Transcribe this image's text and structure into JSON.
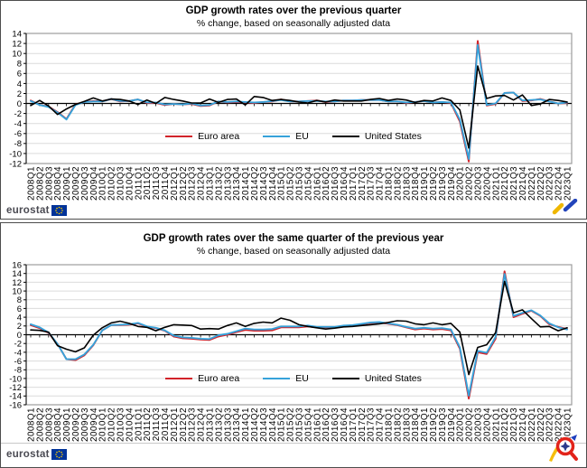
{
  "colors": {
    "grid": "#DCDCDC",
    "axis": "#000000",
    "frame": "#9C9C9C",
    "panel_border": "#4D4D4D",
    "eurostat_text": "#4A4A52",
    "eu_flag_blue": "#003399",
    "eu_flag_stars": "#FFCC00",
    "euro_area": "#D2232A",
    "eu": "#36A2DA",
    "united_states": "#000000"
  },
  "panels": [
    {
      "title": "GDP growth rates over the previous quarter",
      "subtitle": "% change, based on seasonally adjusted data",
      "footer": {
        "logo_text": "eurostat",
        "corner_icon": "trend-arrow-icon"
      },
      "chart_data": {
        "type": "line",
        "title": "GDP growth rates over the previous quarter",
        "subtitle": "% change, based on seasonally adjusted data",
        "xlabel": "",
        "ylabel": "",
        "grid": true,
        "legend_position": "inside-bottom-center",
        "ylim": [
          -12,
          14
        ],
        "ytick_step": 2,
        "x": [
          "2008Q1",
          "2008Q2",
          "2008Q3",
          "2008Q4",
          "2009Q1",
          "2009Q2",
          "2009Q3",
          "2009Q4",
          "2010Q1",
          "2010Q2",
          "2010Q3",
          "2010Q4",
          "2011Q1",
          "2011Q2",
          "2011Q3",
          "2011Q4",
          "2012Q1",
          "2012Q2",
          "2012Q3",
          "2012Q4",
          "2013Q1",
          "2013Q2",
          "2013Q3",
          "2013Q4",
          "2014Q1",
          "2014Q2",
          "2014Q3",
          "2014Q4",
          "2015Q1",
          "2015Q2",
          "2015Q3",
          "2015Q4",
          "2016Q1",
          "2016Q2",
          "2016Q3",
          "2016Q4",
          "2017Q1",
          "2017Q2",
          "2017Q3",
          "2017Q4",
          "2018Q1",
          "2018Q2",
          "2018Q3",
          "2018Q4",
          "2019Q1",
          "2019Q2",
          "2019Q3",
          "2019Q4",
          "2020Q1",
          "2020Q2",
          "2020Q3",
          "2020Q4",
          "2021Q1",
          "2021Q2",
          "2021Q3",
          "2021Q4",
          "2022Q1",
          "2022Q2",
          "2022Q3",
          "2022Q4",
          "2023Q1"
        ],
        "series": [
          {
            "name": "Euro area",
            "color": "#D2232A",
            "values": [
              0.6,
              -0.3,
              -0.6,
              -1.7,
              -3.1,
              -0.2,
              0.3,
              0.5,
              0.4,
              0.9,
              0.4,
              0.5,
              0.8,
              0.1,
              0.1,
              -0.3,
              -0.1,
              -0.2,
              -0.1,
              -0.5,
              -0.4,
              0.4,
              0.2,
              0.3,
              0.2,
              0.1,
              0.3,
              0.4,
              0.8,
              0.4,
              0.4,
              0.5,
              0.6,
              0.3,
              0.4,
              0.6,
              0.6,
              0.7,
              0.7,
              0.7,
              0.4,
              0.4,
              0.1,
              0.3,
              0.5,
              0.2,
              0.3,
              0.1,
              -3.6,
              -11.6,
              12.5,
              -0.4,
              -0.1,
              2.1,
              2.2,
              0.5,
              0.6,
              0.9,
              0.4,
              0.0,
              0.1
            ]
          },
          {
            "name": "EU",
            "color": "#36A2DA",
            "values": [
              0.5,
              -0.3,
              -0.7,
              -1.8,
              -3.2,
              -0.3,
              0.3,
              0.4,
              0.4,
              0.9,
              0.5,
              0.5,
              0.8,
              0.2,
              0.2,
              -0.2,
              -0.1,
              -0.2,
              0.0,
              -0.4,
              -0.3,
              0.4,
              0.3,
              0.4,
              0.3,
              0.2,
              0.3,
              0.5,
              0.7,
              0.4,
              0.4,
              0.5,
              0.5,
              0.4,
              0.4,
              0.6,
              0.6,
              0.7,
              0.7,
              0.7,
              0.4,
              0.4,
              0.2,
              0.3,
              0.5,
              0.2,
              0.3,
              0.2,
              -3.2,
              -11.1,
              11.7,
              -0.3,
              0.0,
              2.1,
              2.2,
              0.6,
              0.7,
              0.8,
              0.4,
              0.0,
              0.2
            ]
          },
          {
            "name": "United States",
            "color": "#000000",
            "values": [
              -0.4,
              0.6,
              -0.5,
              -2.2,
              -1.1,
              -0.2,
              0.4,
              1.1,
              0.5,
              0.9,
              0.8,
              0.5,
              -0.2,
              0.7,
              0.0,
              1.2,
              0.8,
              0.5,
              0.1,
              0.1,
              0.9,
              0.2,
              0.8,
              0.9,
              -0.3,
              1.4,
              1.2,
              0.6,
              0.8,
              0.6,
              0.3,
              0.1,
              0.6,
              0.3,
              0.7,
              0.5,
              0.5,
              0.5,
              0.8,
              1.0,
              0.6,
              0.9,
              0.7,
              0.2,
              0.6,
              0.5,
              1.1,
              0.6,
              -1.3,
              -8.9,
              7.5,
              1.0,
              1.5,
              1.6,
              0.7,
              1.7,
              -0.4,
              -0.1,
              0.8,
              0.6,
              0.3
            ]
          }
        ]
      }
    },
    {
      "title": "GDP growth rates over the same quarter of the previous year",
      "subtitle": "% change, based on seasonally adjusted data",
      "footer": {
        "logo_text": "eurostat",
        "corner_icon": "magnifier-icon"
      },
      "chart_data": {
        "type": "line",
        "title": "GDP growth rates over the same quarter of the previous year",
        "subtitle": "% change, based on seasonally adjusted data",
        "xlabel": "",
        "ylabel": "",
        "grid": true,
        "legend_position": "inside-bottom-center",
        "ylim": [
          -16,
          16
        ],
        "ytick_step": 2,
        "x": [
          "2008Q1",
          "2008Q2",
          "2008Q3",
          "2008Q4",
          "2009Q1",
          "2009Q2",
          "2009Q3",
          "2009Q4",
          "2010Q1",
          "2010Q2",
          "2010Q3",
          "2010Q4",
          "2011Q1",
          "2011Q2",
          "2011Q3",
          "2011Q4",
          "2012Q1",
          "2012Q2",
          "2012Q3",
          "2012Q4",
          "2013Q1",
          "2013Q2",
          "2013Q3",
          "2013Q4",
          "2014Q1",
          "2014Q2",
          "2014Q3",
          "2014Q4",
          "2015Q1",
          "2015Q2",
          "2015Q3",
          "2015Q4",
          "2016Q1",
          "2016Q2",
          "2016Q3",
          "2016Q4",
          "2017Q1",
          "2017Q2",
          "2017Q3",
          "2017Q4",
          "2018Q1",
          "2018Q2",
          "2018Q3",
          "2018Q4",
          "2019Q1",
          "2019Q2",
          "2019Q3",
          "2019Q4",
          "2020Q1",
          "2020Q2",
          "2020Q3",
          "2020Q4",
          "2021Q1",
          "2021Q2",
          "2021Q3",
          "2021Q4",
          "2022Q1",
          "2022Q2",
          "2022Q3",
          "2022Q4",
          "2023Q1"
        ],
        "series": [
          {
            "name": "Euro area",
            "color": "#D2232A",
            "values": [
              2.2,
              1.5,
              0.4,
              -2.1,
              -5.6,
              -5.8,
              -4.7,
              -2.4,
              1.0,
              2.2,
              2.2,
              2.3,
              2.6,
              1.8,
              1.5,
              0.9,
              -0.4,
              -0.8,
              -0.9,
              -1.1,
              -1.2,
              -0.4,
              0.0,
              0.6,
              1.1,
              0.9,
              0.9,
              1.0,
              1.7,
              1.7,
              1.7,
              1.9,
              1.7,
              1.7,
              1.7,
              2.0,
              2.1,
              2.4,
              2.7,
              2.8,
              2.5,
              2.2,
              1.7,
              1.2,
              1.4,
              1.2,
              1.3,
              1.0,
              -3.2,
              -14.6,
              -4.0,
              -4.4,
              -0.9,
              14.5,
              4.0,
              4.8,
              5.5,
              4.3,
              2.4,
              1.8,
              1.3
            ]
          },
          {
            "name": "EU",
            "color": "#36A2DA",
            "values": [
              2.4,
              1.7,
              0.5,
              -2.1,
              -5.6,
              -5.6,
              -4.5,
              -2.3,
              1.0,
              2.2,
              2.3,
              2.4,
              2.7,
              1.9,
              1.6,
              1.0,
              -0.2,
              -0.6,
              -0.7,
              -0.9,
              -1.0,
              -0.1,
              0.2,
              0.8,
              1.4,
              1.2,
              1.2,
              1.3,
              1.9,
              1.9,
              1.9,
              2.1,
              1.8,
              1.8,
              1.8,
              2.1,
              2.2,
              2.5,
              2.8,
              2.9,
              2.6,
              2.3,
              1.8,
              1.4,
              1.6,
              1.4,
              1.5,
              1.2,
              -2.9,
              -13.9,
              -3.7,
              -4.1,
              -0.5,
              13.9,
              4.3,
              5.0,
              5.6,
              4.4,
              2.6,
              1.7,
              1.2
            ]
          },
          {
            "name": "United States",
            "color": "#000000",
            "values": [
              1.1,
              1.0,
              0.6,
              -2.5,
              -3.3,
              -3.9,
              -3.0,
              -0.1,
              1.6,
              2.7,
              3.1,
              2.6,
              1.9,
              1.7,
              0.9,
              1.7,
              2.3,
              2.2,
              2.1,
              1.3,
              1.4,
              1.3,
              2.1,
              2.7,
              1.9,
              2.6,
              2.9,
              2.7,
              3.8,
              3.3,
              2.3,
              1.9,
              1.6,
              1.3,
              1.5,
              1.8,
              1.9,
              2.1,
              2.3,
              2.5,
              2.8,
              3.2,
              3.1,
              2.5,
              2.3,
              2.7,
              2.3,
              2.6,
              0.6,
              -9.1,
              -2.9,
              -2.3,
              0.5,
              12.2,
              5.0,
              5.7,
              3.7,
              1.8,
              1.9,
              0.9,
              1.6
            ]
          }
        ]
      }
    }
  ]
}
